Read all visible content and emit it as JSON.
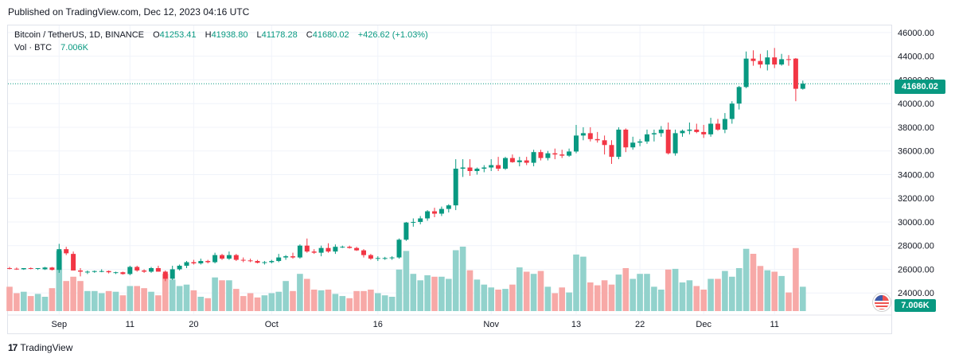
{
  "header": {
    "published": "Published on TradingView.com, Dec 12, 2023 04:16 UTC"
  },
  "legend": {
    "symbol": "Bitcoin / TetherUS, 1D, BINANCE",
    "o_label": "O",
    "o": "41253.41",
    "h_label": "H",
    "h": "41938.80",
    "l_label": "L",
    "l": "41178.28",
    "c_label": "C",
    "c": "41680.02",
    "change": "+426.62 (+1.03%)",
    "vol_label": "Vol · BTC",
    "vol_value": "7.006K"
  },
  "price_tag": "41680.02",
  "volume_tag": "7.006K",
  "footer": {
    "brand": "TradingView",
    "logo": "17"
  },
  "colors": {
    "up": "#089981",
    "down": "#f23645",
    "vol_up": "#92d2cc",
    "vol_down": "#f7a9a7",
    "grid": "#f0f3fa"
  },
  "chart_data": {
    "type": "candlestick",
    "x_tick_labels": [
      {
        "label": "Sep",
        "index": 7
      },
      {
        "label": "11",
        "index": 17
      },
      {
        "label": "20",
        "index": 26
      },
      {
        "label": "Oct",
        "index": 37
      },
      {
        "label": "16",
        "index": 52
      },
      {
        "label": "Nov",
        "index": 68
      },
      {
        "label": "13",
        "index": 80
      },
      {
        "label": "22",
        "index": 89
      },
      {
        "label": "Dec",
        "index": 98
      },
      {
        "label": "11",
        "index": 108
      }
    ],
    "y_ticks": [
      24000,
      26000,
      28000,
      30000,
      32000,
      34000,
      36000,
      38000,
      40000,
      42000,
      44000,
      46000
    ],
    "y_tick_labels": [
      "24000.00",
      "26000.00",
      "28000.00",
      "30000.00",
      "32000.00",
      "34000.00",
      "36000.00",
      "38000.00",
      "40000.00",
      "42000.00",
      "44000.00",
      "46000.00"
    ],
    "ylim": [
      22200,
      46600
    ],
    "last_price": 41680.02,
    "candles": [
      [
        26100,
        26200,
        26000,
        26050,
        0.34
      ],
      [
        26050,
        26150,
        25950,
        26000,
        0.25
      ],
      [
        26000,
        26100,
        25950,
        26100,
        0.27
      ],
      [
        26100,
        26150,
        26000,
        26050,
        0.21
      ],
      [
        26050,
        26100,
        25950,
        26100,
        0.24
      ],
      [
        26000,
        26200,
        25950,
        26150,
        0.2
      ],
      [
        26150,
        26200,
        25900,
        25950,
        0.32
      ],
      [
        25950,
        28150,
        25700,
        27700,
        0.84
      ],
      [
        27700,
        27900,
        27200,
        27350,
        0.42
      ],
      [
        27300,
        27500,
        25900,
        25900,
        0.48
      ],
      [
        25900,
        26100,
        25400,
        25800,
        0.42
      ],
      [
        25800,
        25900,
        25600,
        25800,
        0.28
      ],
      [
        25800,
        25900,
        25700,
        25850,
        0.28
      ],
      [
        25850,
        26000,
        25750,
        25850,
        0.25
      ],
      [
        25850,
        25900,
        25650,
        25750,
        0.28
      ],
      [
        25750,
        25800,
        25600,
        25750,
        0.27
      ],
      [
        25750,
        25800,
        25550,
        25600,
        0.22
      ],
      [
        25600,
        26300,
        25500,
        26200,
        0.35
      ],
      [
        26200,
        26300,
        25800,
        25900,
        0.35
      ],
      [
        25900,
        26000,
        25700,
        25800,
        0.32
      ],
      [
        25800,
        26200,
        25700,
        26100,
        0.27
      ],
      [
        26100,
        26300,
        25800,
        25800,
        0.22
      ],
      [
        25800,
        25900,
        25000,
        25200,
        0.52
      ],
      [
        25200,
        26300,
        25100,
        26000,
        0.44
      ],
      [
        26000,
        26400,
        25900,
        26300,
        0.35
      ],
      [
        26300,
        26700,
        26100,
        26600,
        0.37
      ],
      [
        26600,
        26800,
        26400,
        26500,
        0.29
      ],
      [
        26500,
        26900,
        26400,
        26700,
        0.2
      ],
      [
        26700,
        26800,
        26500,
        26600,
        0.18
      ],
      [
        26600,
        27400,
        26500,
        27200,
        0.47
      ],
      [
        27200,
        27300,
        26800,
        26900,
        0.43
      ],
      [
        26900,
        27500,
        26800,
        27200,
        0.43
      ],
      [
        27200,
        27300,
        26700,
        26800,
        0.31
      ],
      [
        26800,
        27000,
        26600,
        26750,
        0.21
      ],
      [
        26750,
        26900,
        26600,
        26700,
        0.25
      ],
      [
        26700,
        26800,
        26500,
        26550,
        0.19
      ],
      [
        26550,
        26700,
        26400,
        26600,
        0.22
      ],
      [
        26600,
        26800,
        26500,
        26700,
        0.25
      ],
      [
        26700,
        27300,
        26600,
        27000,
        0.27
      ],
      [
        27000,
        27200,
        26800,
        27100,
        0.42
      ],
      [
        27100,
        27400,
        26900,
        27000,
        0.28
      ],
      [
        27000,
        28100,
        26900,
        28000,
        0.52
      ],
      [
        28000,
        28600,
        27400,
        27500,
        0.45
      ],
      [
        27500,
        27700,
        27300,
        27400,
        0.3
      ],
      [
        27400,
        28000,
        27100,
        27800,
        0.29
      ],
      [
        27800,
        28200,
        27400,
        27500,
        0.3
      ],
      [
        27500,
        28100,
        27300,
        27900,
        0.24
      ],
      [
        27900,
        28000,
        27800,
        27900,
        0.21
      ],
      [
        27900,
        28000,
        27750,
        27800,
        0.18
      ],
      [
        27800,
        27900,
        27550,
        27600,
        0.28
      ],
      [
        27600,
        27700,
        27000,
        27200,
        0.28
      ],
      [
        27200,
        27300,
        26800,
        26900,
        0.3
      ],
      [
        26900,
        27100,
        26700,
        26950,
        0.25
      ],
      [
        26950,
        27050,
        26800,
        26950,
        0.22
      ],
      [
        26950,
        27100,
        26800,
        27000,
        0.2
      ],
      [
        27000,
        28600,
        26900,
        28500,
        0.58
      ],
      [
        28500,
        30000,
        28400,
        29950,
        0.84
      ],
      [
        29950,
        30300,
        29600,
        30000,
        0.52
      ],
      [
        30000,
        30500,
        29800,
        30300,
        0.43
      ],
      [
        30300,
        31000,
        30100,
        30900,
        0.5
      ],
      [
        30900,
        31200,
        30400,
        30700,
        0.48
      ],
      [
        30700,
        31300,
        30500,
        31100,
        0.48
      ],
      [
        31100,
        31500,
        30800,
        31400,
        0.45
      ],
      [
        31400,
        35300,
        31000,
        34500,
        0.85
      ],
      [
        34500,
        35300,
        33800,
        34600,
        0.9
      ],
      [
        34600,
        35300,
        33900,
        34300,
        0.57
      ],
      [
        34300,
        34600,
        34000,
        34500,
        0.44
      ],
      [
        34500,
        34800,
        34200,
        34600,
        0.37
      ],
      [
        34600,
        35300,
        34300,
        34800,
        0.33
      ],
      [
        34800,
        35500,
        34300,
        34500,
        0.3
      ],
      [
        34500,
        35500,
        34400,
        35400,
        0.31
      ],
      [
        35400,
        35700,
        35000,
        35050,
        0.37
      ],
      [
        35050,
        35500,
        34700,
        35200,
        0.61
      ],
      [
        35200,
        35500,
        34800,
        35000,
        0.55
      ],
      [
        35000,
        36100,
        34700,
        35900,
        0.52
      ],
      [
        35900,
        36100,
        35200,
        35400,
        0.56
      ],
      [
        35400,
        36000,
        35200,
        35800,
        0.34
      ],
      [
        35800,
        36200,
        35300,
        35700,
        0.25
      ],
      [
        35700,
        36100,
        35400,
        35600,
        0.33
      ],
      [
        35600,
        36200,
        35500,
        35950,
        0.26
      ],
      [
        35950,
        38200,
        35800,
        37300,
        0.79
      ],
      [
        37300,
        38000,
        36900,
        37500,
        0.76
      ],
      [
        37500,
        38000,
        36800,
        37000,
        0.4
      ],
      [
        37000,
        37600,
        36700,
        36900,
        0.36
      ],
      [
        36900,
        37300,
        35700,
        36500,
        0.43
      ],
      [
        36500,
        36900,
        34900,
        35500,
        0.37
      ],
      [
        35500,
        38000,
        35300,
        37800,
        0.51
      ],
      [
        37800,
        37900,
        35900,
        36300,
        0.6
      ],
      [
        36300,
        37200,
        36100,
        36700,
        0.45
      ],
      [
        36700,
        37000,
        36400,
        36800,
        0.52
      ],
      [
        36800,
        37800,
        36600,
        37400,
        0.52
      ],
      [
        37400,
        37800,
        36800,
        37500,
        0.34
      ],
      [
        37500,
        38100,
        37200,
        37800,
        0.3
      ],
      [
        37800,
        38400,
        35700,
        35800,
        0.58
      ],
      [
        35800,
        37800,
        35600,
        37500,
        0.59
      ],
      [
        37500,
        37800,
        37200,
        37700,
        0.4
      ],
      [
        37700,
        38400,
        37400,
        37800,
        0.43
      ],
      [
        37800,
        38300,
        37500,
        37600,
        0.35
      ],
      [
        37600,
        38200,
        37100,
        37400,
        0.3
      ],
      [
        37400,
        38800,
        37200,
        38300,
        0.45
      ],
      [
        38300,
        38700,
        37700,
        37800,
        0.45
      ],
      [
        37800,
        39200,
        37500,
        38700,
        0.56
      ],
      [
        38700,
        40200,
        38300,
        40000,
        0.48
      ],
      [
        40000,
        41500,
        39500,
        41400,
        0.6
      ],
      [
        41400,
        44400,
        41300,
        43800,
        0.87
      ],
      [
        43800,
        44500,
        43200,
        43600,
        0.8
      ],
      [
        43600,
        44200,
        43000,
        43300,
        0.63
      ],
      [
        43300,
        44500,
        42800,
        43900,
        0.57
      ],
      [
        43900,
        44700,
        43000,
        43300,
        0.55
      ],
      [
        43300,
        44200,
        43200,
        43750,
        0.49
      ],
      [
        43750,
        44100,
        43200,
        43700,
        0.26
      ],
      [
        43800,
        43850,
        40200,
        41250,
        0.88
      ],
      [
        41250,
        41938.8,
        41178.28,
        41680.02,
        0.34
      ]
    ]
  }
}
